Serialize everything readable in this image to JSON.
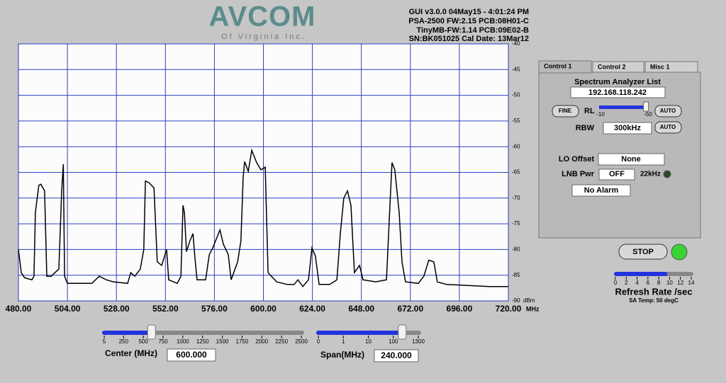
{
  "header": {
    "logo": "AVCOM",
    "logo_sub": "Of Virginia Inc.",
    "info": [
      "GUI v3.0.0  04May15 - 4:01:24 PM",
      "PSA-2500 FW:2.15 PCB:08H01-C",
      "TinyMB-FW:1.14  PCB:09E02-B",
      "SN:BK051025  Cal Date: 13Mar12"
    ]
  },
  "chart_data": {
    "type": "line",
    "color": "#000000",
    "grid": true,
    "grid_color": "#2f3fc0",
    "y_unit": "dBm",
    "x_unit": "MHz",
    "xlim": [
      480,
      720
    ],
    "ylim": [
      -90,
      -40
    ],
    "xticks": [
      {
        "value": 480,
        "label": "480.00"
      },
      {
        "value": 504,
        "label": "504.00"
      },
      {
        "value": 528,
        "label": "528.00"
      },
      {
        "value": 552,
        "label": "552.00"
      },
      {
        "value": 576,
        "label": "576.00"
      },
      {
        "value": 600,
        "label": "600.00"
      },
      {
        "value": 624,
        "label": "624.00"
      },
      {
        "value": 648,
        "label": "648.00"
      },
      {
        "value": 672,
        "label": "672.00"
      },
      {
        "value": 696,
        "label": "696.00"
      },
      {
        "value": 720,
        "label": "720.00"
      }
    ],
    "yticks": [
      -40,
      -45,
      -50,
      -55,
      -60,
      -65,
      -70,
      -75,
      -80,
      -85,
      -90
    ],
    "x": [
      480,
      481.4,
      483,
      486.6,
      487.6,
      488.3,
      490,
      491,
      492.8,
      493.9,
      496,
      499.8,
      501.2,
      502,
      502.6,
      504,
      509.2,
      516,
      519.6,
      523,
      526.5,
      533.5,
      535,
      537,
      539.7,
      541.4,
      542.2,
      543.9,
      546.4,
      548,
      550.2,
      552.6,
      553.6,
      557.8,
      559.6,
      560.6,
      561.3,
      562.3,
      564,
      565.5,
      566.5,
      567.5,
      571.7,
      573.5,
      575.2,
      577.3,
      578.7,
      580.4,
      582.8,
      584.2,
      587.4,
      589,
      590.1,
      590.8,
      592.6,
      594.3,
      596.7,
      598.8,
      600.9,
      602.3,
      606.5,
      611.7,
      615.1,
      616.9,
      619.3,
      622.1,
      623.8,
      625.5,
      627.3,
      632.5,
      636,
      637.7,
      639.4,
      641.2,
      642.9,
      644.6,
      647.1,
      648.8,
      655,
      660.3,
      662,
      663,
      664.4,
      666.5,
      667.9,
      669.6,
      675.9,
      678.6,
      681,
      683.5,
      685.2,
      689.7,
      700.2,
      710.6,
      720
    ],
    "values": [
      -80.0,
      -84.5,
      -85.5,
      -85.9,
      -85.2,
      -72.8,
      -67.5,
      -67.3,
      -68.6,
      -85.2,
      -85.2,
      -83.8,
      -68.6,
      -63.4,
      -85.2,
      -86.6,
      -86.6,
      -86.6,
      -85.2,
      -85.9,
      -86.3,
      -86.6,
      -84.5,
      -85.2,
      -83.8,
      -80.0,
      -66.7,
      -67.0,
      -68.0,
      -82.4,
      -83.1,
      -80.0,
      -85.9,
      -86.6,
      -85.2,
      -71.4,
      -72.8,
      -80.4,
      -78.3,
      -76.9,
      -81.7,
      -85.9,
      -85.9,
      -81.0,
      -79.7,
      -77.6,
      -76.2,
      -79.0,
      -81.0,
      -85.9,
      -82.4,
      -78.3,
      -65.9,
      -62.9,
      -64.8,
      -60.7,
      -63.1,
      -64.5,
      -64.0,
      -84.5,
      -86.3,
      -86.8,
      -86.8,
      -85.9,
      -87.2,
      -85.9,
      -79.7,
      -81.3,
      -86.8,
      -86.8,
      -85.9,
      -76.9,
      -70.0,
      -68.6,
      -71.4,
      -84.5,
      -83.1,
      -85.9,
      -86.3,
      -85.9,
      -71.4,
      -63.1,
      -64.5,
      -72.8,
      -82.4,
      -86.3,
      -86.6,
      -85.2,
      -82.1,
      -82.4,
      -86.3,
      -86.8,
      -87.0,
      -87.2,
      -87.2
    ]
  },
  "panel": {
    "tabs": [
      "Control 1",
      "Control 2",
      "Misc 1"
    ],
    "title": "Spectrum Analyzer List",
    "ip": "192.168.118.242",
    "fine": "FINE",
    "rl_label": "RL",
    "rl_min": -10,
    "rl_max": -50,
    "rl_value": -48,
    "rl_auto": "AUTO",
    "rbw_label": "RBW",
    "rbw": "300kHz",
    "rbw_auto": "AUTO",
    "lo_label": "LO Offset",
    "lo": "None",
    "lnb_label": "LNB Pwr",
    "lnb": "OFF",
    "tone": "22kHz",
    "alarm": "No Alarm"
  },
  "run": {
    "stop": "STOP",
    "refresh_ticks": [
      0,
      2,
      4,
      6,
      8,
      10,
      12,
      14
    ],
    "refresh_value": 9.5,
    "refresh_label": "Refresh Rate /sec",
    "temp": "SA Temp: 50 degC"
  },
  "center": {
    "label": "Center (MHz)",
    "value": "600.000",
    "ticks": [
      5,
      250,
      500,
      750,
      1000,
      1250,
      1500,
      1750,
      2000,
      2250,
      2500
    ]
  },
  "span": {
    "label": "Span(MHz)",
    "value": "240.000",
    "ticks": [
      0,
      1,
      10,
      100,
      1300
    ]
  }
}
